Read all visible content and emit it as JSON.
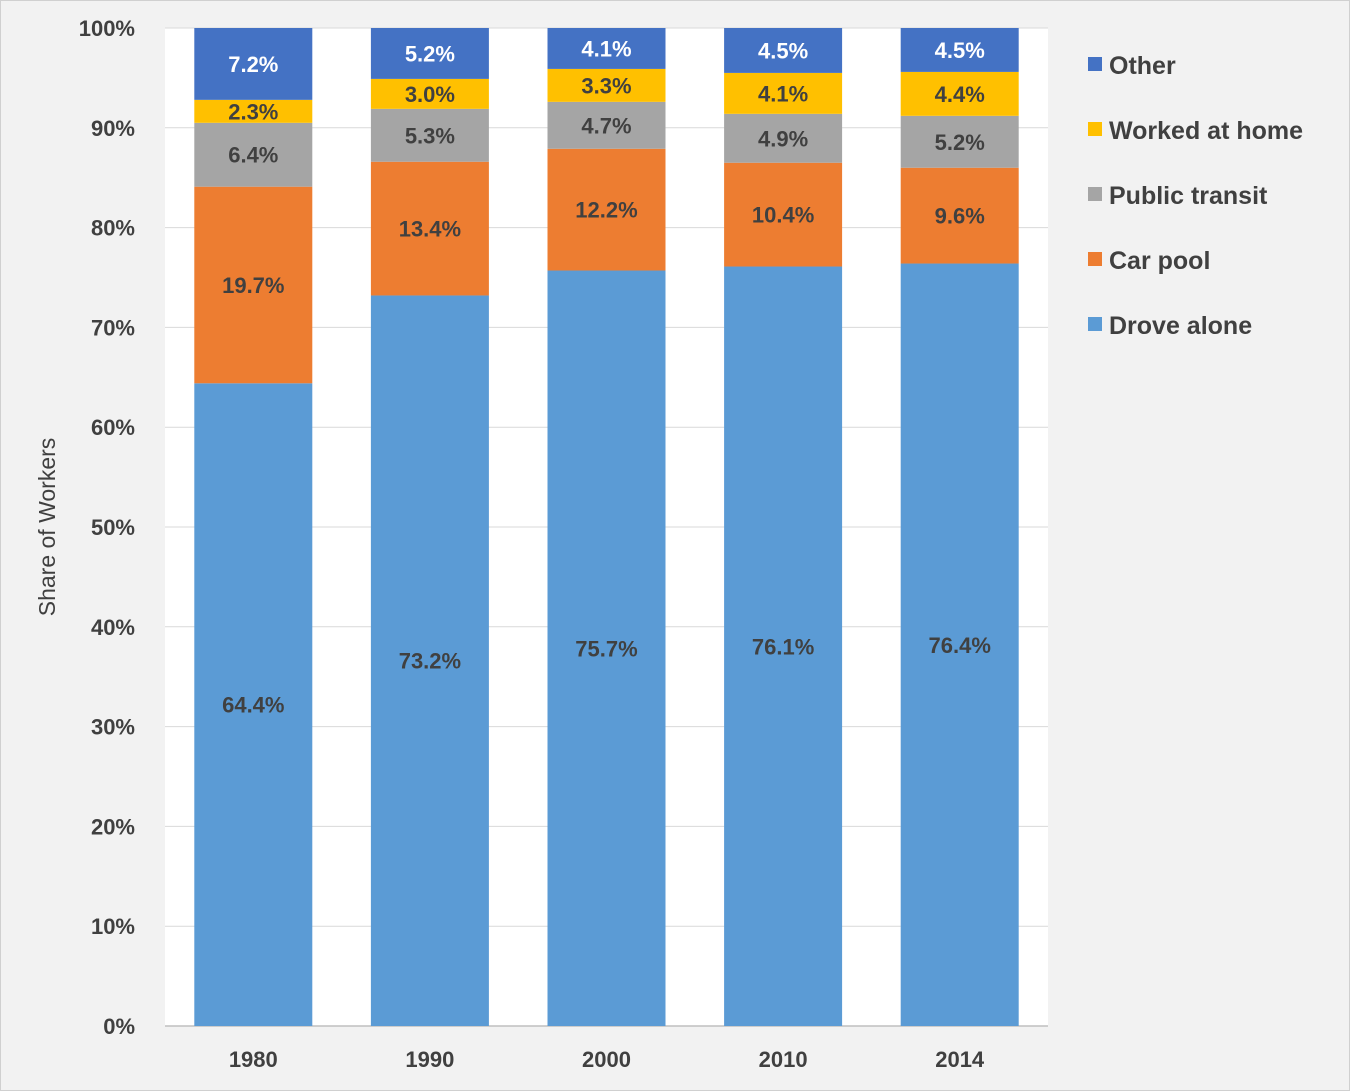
{
  "chart_data": {
    "type": "bar",
    "stacked": true,
    "title": "",
    "xlabel": "",
    "ylabel": "Share of Workers",
    "ylim": [
      0,
      100
    ],
    "ytick_labels": [
      "0%",
      "10%",
      "20%",
      "30%",
      "40%",
      "50%",
      "60%",
      "70%",
      "80%",
      "90%",
      "100%"
    ],
    "grid": true,
    "legend_position": "right",
    "categories": [
      "1980",
      "1990",
      "2000",
      "2010",
      "2014"
    ],
    "series": [
      {
        "name": "Drove alone",
        "color": "#5b9bd5",
        "label_color": "#404040",
        "values": [
          64.4,
          73.2,
          75.7,
          76.1,
          76.4
        ],
        "labels": [
          "64.4%",
          "73.2%",
          "75.7%",
          "76.1%",
          "76.4%"
        ]
      },
      {
        "name": "Car pool",
        "color": "#ed7d31",
        "label_color": "#404040",
        "values": [
          19.7,
          13.4,
          12.2,
          10.4,
          9.6
        ],
        "labels": [
          "19.7%",
          "13.4%",
          "12.2%",
          "10.4%",
          "9.6%"
        ]
      },
      {
        "name": "Public transit",
        "color": "#a5a5a5",
        "label_color": "#404040",
        "values": [
          6.4,
          5.3,
          4.7,
          4.9,
          5.2
        ],
        "labels": [
          "6.4%",
          "5.3%",
          "4.7%",
          "4.9%",
          "5.2%"
        ]
      },
      {
        "name": "Worked at home",
        "color": "#ffc000",
        "label_color": "#404040",
        "values": [
          2.3,
          3.0,
          3.3,
          4.1,
          4.4
        ],
        "labels": [
          "2.3%",
          "3.0%",
          "3.3%",
          "4.1%",
          "4.4%"
        ]
      },
      {
        "name": "Other",
        "color": "#4472c4",
        "label_color": "#ffffff",
        "values": [
          7.2,
          5.2,
          4.1,
          4.5,
          4.5
        ],
        "labels": [
          "7.2%",
          "5.2%",
          "4.1%",
          "4.5%",
          "4.5%"
        ]
      }
    ],
    "legend_order": [
      "Other",
      "Worked at home",
      "Public transit",
      "Car pool",
      "Drove alone"
    ]
  }
}
